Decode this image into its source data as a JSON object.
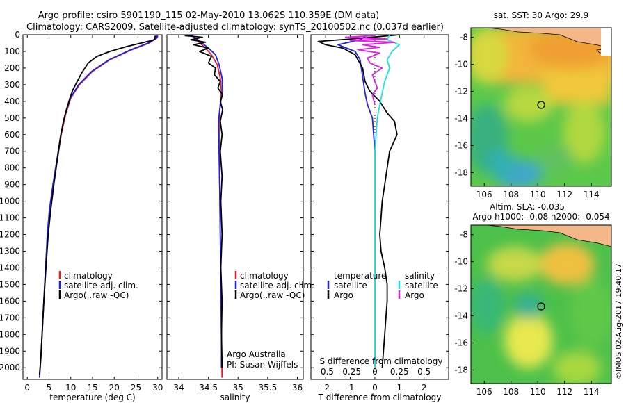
{
  "header": {
    "title_line1": "Argo profile: csiro 5901190_115 02-May-2010 13.062S 110.359E (DM data)",
    "title_line2": "Climatology: CARS2009. Satellite-adjusted climatology: synTS_20100502.nc (0.037d earlier)"
  },
  "side_note": "©IMOS 02-Aug-2017 19:40:17",
  "colors": {
    "climatology": "#e02020",
    "satellite": "#2020e0",
    "argo": "#000000",
    "sat_salinity": "#20e0e0",
    "argo_salinity": "#e020e0"
  },
  "chart_data": [
    {
      "type": "line",
      "id": "temperature",
      "xlabel": "temperature (deg C)",
      "xlim": [
        -1,
        31
      ],
      "xticks": [
        0,
        5,
        10,
        15,
        20,
        25,
        30
      ],
      "ylim": [
        0,
        2070
      ],
      "yticks": [
        0,
        100,
        200,
        300,
        400,
        500,
        600,
        700,
        800,
        900,
        1000,
        1100,
        1200,
        1300,
        1400,
        1500,
        1600,
        1700,
        1800,
        1900,
        2000
      ],
      "legend": [
        "climatology",
        "satellite-adj. clim.",
        "Argo(..raw -QC)"
      ],
      "series": [
        {
          "name": "climatology",
          "color": "#e02020",
          "points": [
            [
              30,
              0
            ],
            [
              29.8,
              20
            ],
            [
              28,
              50
            ],
            [
              24,
              90
            ],
            [
              19,
              150
            ],
            [
              15,
              220
            ],
            [
              12,
              300
            ],
            [
              10,
              380
            ],
            [
              8.8,
              480
            ],
            [
              7.8,
              600
            ],
            [
              6.9,
              750
            ],
            [
              6,
              900
            ],
            [
              5.2,
              1050
            ],
            [
              4.7,
              1200
            ],
            [
              4.2,
              1400
            ],
            [
              3.8,
              1600
            ],
            [
              3.4,
              1800
            ],
            [
              3.1,
              1950
            ],
            [
              2.8,
              2060
            ]
          ]
        },
        {
          "name": "satellite-adj. clim.",
          "color": "#2020e0",
          "points": [
            [
              29.9,
              0
            ],
            [
              29.7,
              20
            ],
            [
              27.8,
              50
            ],
            [
              23.8,
              90
            ],
            [
              18.8,
              150
            ],
            [
              14.8,
              220
            ],
            [
              11.8,
              300
            ],
            [
              9.9,
              380
            ],
            [
              8.7,
              480
            ],
            [
              7.7,
              600
            ],
            [
              6.8,
              750
            ],
            [
              5.9,
              900
            ],
            [
              5.1,
              1050
            ],
            [
              4.6,
              1200
            ],
            [
              4.2,
              1400
            ],
            [
              3.8,
              1600
            ],
            [
              3.4,
              1800
            ],
            [
              3.1,
              1950
            ],
            [
              2.8,
              2060
            ]
          ]
        },
        {
          "name": "Argo(..raw -QC)",
          "color": "#000000",
          "points": [
            [
              29.5,
              5
            ],
            [
              29.2,
              30
            ],
            [
              27,
              45
            ],
            [
              23,
              70
            ],
            [
              19,
              100
            ],
            [
              16,
              130
            ],
            [
              14,
              170
            ],
            [
              12.5,
              230
            ],
            [
              11.5,
              280
            ],
            [
              10.5,
              330
            ],
            [
              9.8,
              380
            ],
            [
              9,
              450
            ],
            [
              8.3,
              520
            ],
            [
              7.6,
              620
            ],
            [
              6.9,
              750
            ],
            [
              6.1,
              900
            ],
            [
              5.4,
              1050
            ],
            [
              4.8,
              1200
            ],
            [
              4.3,
              1400
            ],
            [
              3.8,
              1600
            ],
            [
              3.4,
              1800
            ],
            [
              3.1,
              1950
            ],
            [
              2.8,
              2040
            ]
          ]
        }
      ]
    },
    {
      "type": "line",
      "id": "salinity",
      "xlabel": "salinity",
      "xlim": [
        33.8,
        36.1
      ],
      "xticks": [
        34,
        34.5,
        35,
        35.5,
        36
      ],
      "xtick_labels": [
        "34",
        "34.5",
        "35",
        "35.5",
        "36"
      ],
      "ylim": [
        0,
        2070
      ],
      "legend": [
        "climatology",
        "satellite-adj. clim.",
        "Argo(..raw -QC)"
      ],
      "annotation": [
        "Argo Australia",
        "PI: Susan Wijffels"
      ],
      "series": [
        {
          "name": "climatology",
          "color": "#e02020",
          "points": [
            [
              34.2,
              0
            ],
            [
              34.3,
              30
            ],
            [
              34.45,
              80
            ],
            [
              34.55,
              120
            ],
            [
              34.65,
              180
            ],
            [
              34.7,
              260
            ],
            [
              34.72,
              340
            ],
            [
              34.7,
              420
            ],
            [
              34.68,
              520
            ],
            [
              34.68,
              700
            ],
            [
              34.69,
              900
            ],
            [
              34.7,
              1200
            ],
            [
              34.71,
              1500
            ],
            [
              34.72,
              1800
            ],
            [
              34.73,
              2060
            ]
          ]
        },
        {
          "name": "satellite-adj. clim.",
          "color": "#2020e0",
          "points": [
            [
              34.2,
              0
            ],
            [
              34.32,
              30
            ],
            [
              34.5,
              80
            ],
            [
              34.62,
              120
            ],
            [
              34.68,
              180
            ],
            [
              34.73,
              260
            ],
            [
              34.74,
              340
            ],
            [
              34.7,
              420
            ],
            [
              34.67,
              520
            ],
            [
              34.68,
              700
            ],
            [
              34.69,
              900
            ],
            [
              34.7,
              1200
            ],
            [
              34.71,
              1500
            ],
            [
              34.72,
              1800
            ],
            [
              34.72,
              2000
            ]
          ]
        },
        {
          "name": "Argo(..raw -QC)",
          "color": "#000000",
          "points": [
            [
              34.1,
              5
            ],
            [
              34.4,
              15
            ],
            [
              34.2,
              30
            ],
            [
              34.45,
              45
            ],
            [
              34.25,
              60
            ],
            [
              34.5,
              80
            ],
            [
              34.35,
              100
            ],
            [
              34.55,
              130
            ],
            [
              34.5,
              170
            ],
            [
              34.62,
              200
            ],
            [
              34.6,
              240
            ],
            [
              34.7,
              280
            ],
            [
              34.66,
              320
            ],
            [
              34.74,
              360
            ],
            [
              34.7,
              400
            ],
            [
              34.74,
              450
            ],
            [
              34.7,
              520
            ],
            [
              34.73,
              600
            ],
            [
              34.7,
              700
            ],
            [
              34.73,
              850
            ],
            [
              34.71,
              1000
            ],
            [
              34.73,
              1200
            ],
            [
              34.71,
              1400
            ],
            [
              34.73,
              1600
            ],
            [
              34.72,
              1800
            ],
            [
              34.73,
              2000
            ]
          ]
        }
      ]
    },
    {
      "type": "line",
      "id": "differences",
      "xlabel": "T difference from climatology",
      "xlabel_top": "S difference from climatology",
      "xlim": [
        -2.6,
        3.0
      ],
      "xticks": [
        -2,
        -1,
        0,
        1,
        2
      ],
      "s_xtick_labels": [
        "-0.5",
        "-0.25",
        "0",
        "0.25",
        "0.5"
      ],
      "s_xtick_positions": [
        -2,
        -1,
        0,
        1,
        2
      ],
      "ylim": [
        0,
        2070
      ],
      "legend_temperature": [
        "temperature",
        "satellite",
        "Argo"
      ],
      "legend_salinity": [
        "salinity",
        "satellite",
        "Argo"
      ],
      "series": [
        {
          "name": "satellite",
          "color": "#2020e0",
          "points": [
            [
              -0.3,
              0
            ],
            [
              -0.6,
              30
            ],
            [
              -1.5,
              60
            ],
            [
              -0.8,
              100
            ],
            [
              -0.6,
              150
            ],
            [
              -0.5,
              250
            ],
            [
              -0.4,
              350
            ],
            [
              -0.3,
              420
            ],
            [
              -0.1,
              500
            ],
            [
              0,
              700
            ],
            [
              0,
              1000
            ],
            [
              0,
              1500
            ],
            [
              0,
              2000
            ]
          ]
        },
        {
          "name": "Argo",
          "color": "#000000",
          "points": [
            [
              1,
              0
            ],
            [
              -0.5,
              20
            ],
            [
              -2.3,
              40
            ],
            [
              -2.0,
              60
            ],
            [
              -1.3,
              80
            ],
            [
              -0.8,
              120
            ],
            [
              -0.5,
              200
            ],
            [
              -0.4,
              280
            ],
            [
              -0.2,
              340
            ],
            [
              0.2,
              400
            ],
            [
              0.5,
              470
            ],
            [
              0.8,
              520
            ],
            [
              0.9,
              600
            ],
            [
              0.6,
              700
            ],
            [
              0.5,
              800
            ],
            [
              0.4,
              900
            ],
            [
              0.3,
              1000
            ],
            [
              0.25,
              1100
            ],
            [
              0.2,
              1200
            ],
            [
              0.25,
              1300
            ],
            [
              0.4,
              1400
            ],
            [
              0.5,
              1500
            ],
            [
              0.5,
              1600
            ],
            [
              0.45,
              1700
            ],
            [
              0.4,
              1800
            ],
            [
              0.35,
              1900
            ],
            [
              0.3,
              2000
            ]
          ]
        },
        {
          "name": "sat salinity",
          "color": "#20e0e0",
          "points": [
            [
              0.6,
              0
            ],
            [
              0.5,
              30
            ],
            [
              1.0,
              60
            ],
            [
              0.7,
              100
            ],
            [
              0.5,
              150
            ],
            [
              0.6,
              200
            ],
            [
              0.4,
              280
            ],
            [
              0.3,
              350
            ],
            [
              0.2,
              420
            ],
            [
              0.1,
              500
            ],
            [
              0,
              700
            ],
            [
              0,
              1000
            ],
            [
              0,
              1500
            ],
            [
              0,
              2000
            ]
          ]
        },
        {
          "name": "Argo salinity",
          "color": "#e020e0",
          "points": [
            [
              0,
              5
            ],
            [
              -1.2,
              15
            ],
            [
              0.5,
              25
            ],
            [
              -1,
              35
            ],
            [
              0.8,
              45
            ],
            [
              -0.5,
              60
            ],
            [
              0.2,
              75
            ],
            [
              -0.7,
              90
            ],
            [
              0.2,
              110
            ],
            [
              -0.3,
              140
            ],
            [
              -0.2,
              170
            ],
            [
              0.3,
              200
            ],
            [
              -0.1,
              240
            ],
            [
              0,
              280
            ],
            [
              0.1,
              320
            ],
            [
              -0.1,
              360
            ],
            [
              0,
              420
            ]
          ]
        }
      ]
    },
    {
      "type": "heatmap",
      "id": "sst_map",
      "title": "sat. SST: 30 Argo: 29.9",
      "xticks": [
        106,
        108,
        110,
        112,
        114
      ],
      "yticks": [
        -8,
        -10,
        -12,
        -14,
        -16,
        -18
      ],
      "xlim": [
        105,
        115.5
      ],
      "ylim": [
        -19,
        -7.3
      ],
      "marker": [
        110.36,
        -13.06
      ]
    },
    {
      "type": "heatmap",
      "id": "sla_map",
      "title": "Altim. SLA: -0.035",
      "subtitle": "Argo h1000: -0.08 h2000: -0.054",
      "xticks": [
        106,
        108,
        110,
        112,
        114
      ],
      "yticks": [
        -8,
        -10,
        -12,
        -14,
        -16,
        -18
      ],
      "xlim": [
        105,
        115.5
      ],
      "ylim": [
        -19,
        -7.3
      ],
      "marker": [
        110.36,
        -13.06
      ]
    }
  ]
}
